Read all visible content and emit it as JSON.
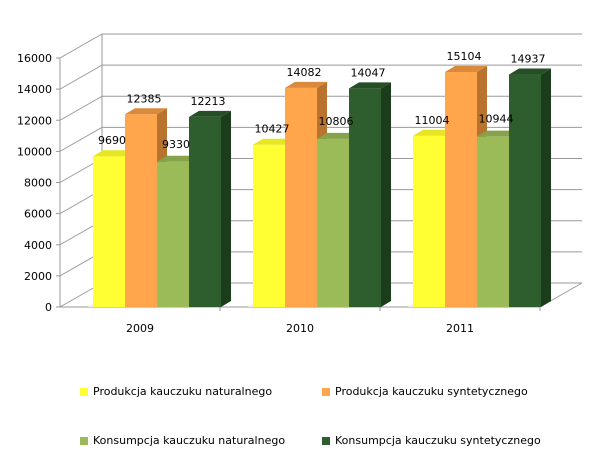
{
  "chart_data": {
    "type": "bar",
    "categories": [
      "2009",
      "2010",
      "2011"
    ],
    "series": [
      {
        "name": "Produkcja kauczuku naturalnego",
        "values": [
          9690,
          10427,
          11004
        ],
        "color": "#ffff33",
        "side": "#c9c913",
        "top": "#e6e622"
      },
      {
        "name": "Produkcja kauczuku syntetycznego",
        "values": [
          12385,
          14082,
          15104
        ],
        "color": "#ffa64d",
        "side": "#b8742e",
        "top": "#d98a3c"
      },
      {
        "name": "Konsumpcja kauczuku naturalnego",
        "values": [
          9330,
          10806,
          10944
        ],
        "color": "#9bbb59",
        "side": "#6f8a3c",
        "top": "#86a349"
      },
      {
        "name": "Konsumpcja kauczuku syntetycznego",
        "values": [
          12213,
          14047,
          14937
        ],
        "color": "#2e5e2e",
        "side": "#1c3d1c",
        "top": "#264f26"
      }
    ],
    "yticks": [
      "0",
      "2000",
      "4000",
      "6000",
      "8000",
      "10000",
      "12000",
      "14000",
      "16000"
    ],
    "ylim": [
      0,
      16000
    ],
    "grid": true,
    "legend_position": "bottom",
    "title": "",
    "xlabel": "",
    "ylabel": ""
  }
}
